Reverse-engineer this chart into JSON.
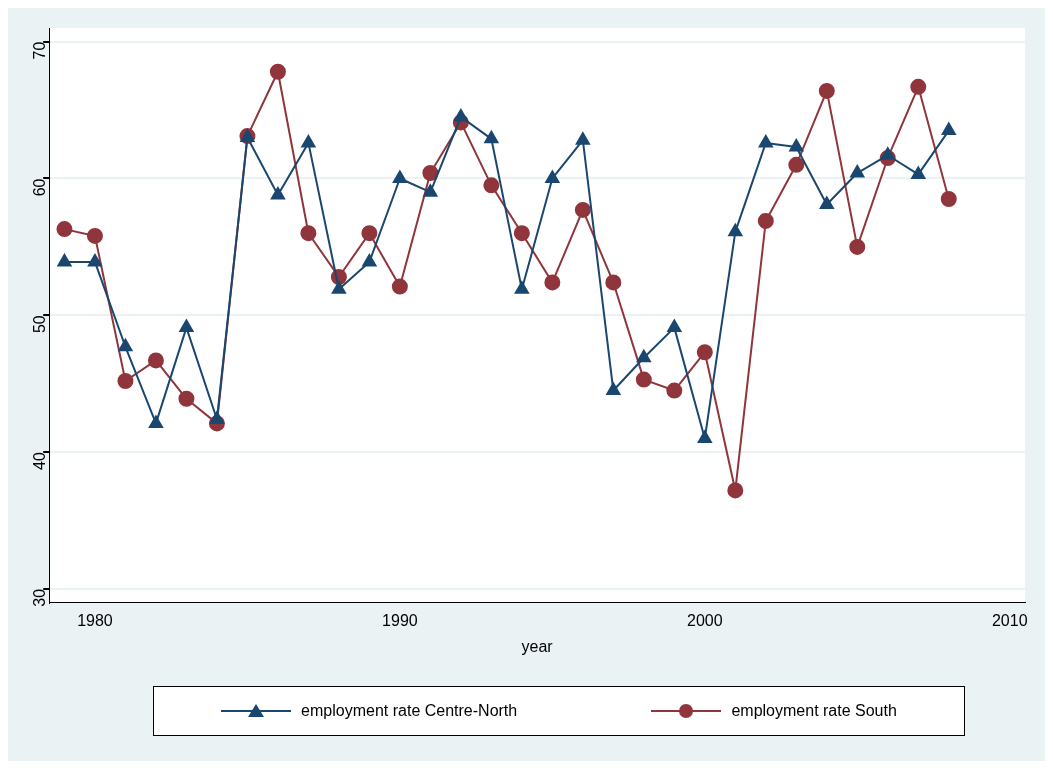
{
  "chart_data": {
    "type": "line",
    "xlabel": "year",
    "x": [
      1979,
      1980,
      1981,
      1982,
      1983,
      1984,
      1985,
      1986,
      1987,
      1988,
      1989,
      1990,
      1991,
      1992,
      1993,
      1994,
      1995,
      1996,
      1997,
      1998,
      1999,
      2000,
      2001,
      2002,
      2003,
      2004,
      2005,
      2006,
      2007,
      2008
    ],
    "series": [
      {
        "name": "employment rate Centre-North",
        "color": "#1a476f",
        "marker": "triangle",
        "values": [
          53.9,
          53.9,
          47.7,
          42.1,
          49.1,
          42.4,
          63.0,
          58.8,
          62.6,
          51.9,
          53.9,
          60.0,
          59.0,
          64.5,
          62.9,
          51.9,
          60.0,
          62.8,
          44.5,
          46.9,
          49.1,
          41.0,
          56.1,
          62.6,
          62.3,
          58.1,
          60.4,
          61.7,
          60.3,
          63.5
        ]
      },
      {
        "name": "employment rate South",
        "color": "#90353b",
        "marker": "circle",
        "values": [
          56.3,
          55.8,
          45.2,
          46.7,
          43.9,
          42.1,
          63.1,
          67.8,
          56.0,
          52.8,
          56.0,
          52.1,
          60.4,
          64.1,
          59.5,
          56.0,
          52.4,
          57.7,
          52.4,
          45.3,
          44.5,
          47.3,
          37.2,
          56.9,
          61.0,
          66.4,
          55.0,
          61.5,
          66.7,
          58.5
        ]
      }
    ],
    "xlim": [
      1978.5,
      2010.5
    ],
    "xticks": [
      1980,
      1990,
      2000,
      2010
    ],
    "ylim": [
      29,
      71
    ],
    "yticks": [
      30,
      40,
      50,
      60,
      70
    ],
    "grid": "y",
    "legend": "bottom",
    "line_style": "solid"
  }
}
